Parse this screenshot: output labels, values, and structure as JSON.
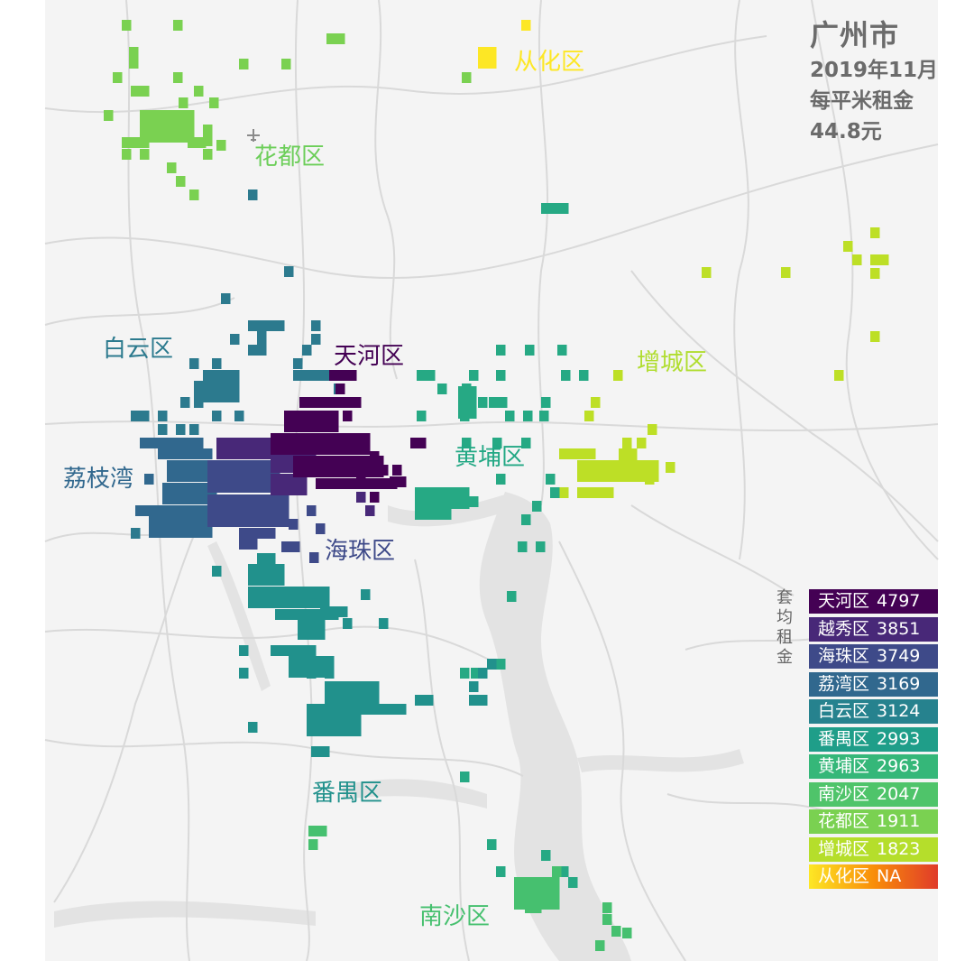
{
  "header": {
    "city": "广州市",
    "date": "2019年11月",
    "metric_label": "每平米租金",
    "metric_value": "44.8元"
  },
  "colors": {
    "background": "#ffffff",
    "land": "#f4f4f4",
    "road": "#dcdcdc",
    "water": "#e4e4e4",
    "title_text": "#6b6b6b"
  },
  "districts": [
    {
      "id": "tianhe",
      "name": "天河区",
      "color": "#440154",
      "label_color": "#440154"
    },
    {
      "id": "yuexiu",
      "name": "越秀区",
      "color": "#482878",
      "label_color": "#482878"
    },
    {
      "id": "haizhu",
      "name": "海珠区",
      "color": "#3e4a89",
      "label_color": "#3e4a89"
    },
    {
      "id": "liwan",
      "name": "荔枝湾",
      "color": "#31688e",
      "label_color": "#31688e"
    },
    {
      "id": "baiyun",
      "name": "白云区",
      "color": "#2c7a8e",
      "label_color": "#2c7a8e"
    },
    {
      "id": "panyu",
      "name": "番禺区",
      "color": "#21918c",
      "label_color": "#21918c"
    },
    {
      "id": "huangpu",
      "name": "黄埔区",
      "color": "#26a984",
      "label_color": "#22a884"
    },
    {
      "id": "nansha",
      "name": "南沙区",
      "color": "#46c06f",
      "label_color": "#46c06f"
    },
    {
      "id": "huadu",
      "name": "花都区",
      "color": "#7ad151",
      "label_color": "#6cce59"
    },
    {
      "id": "zengcheng",
      "name": "增城区",
      "color": "#bddf26",
      "label_color": "#b0dd2f"
    },
    {
      "id": "conghua",
      "name": "从化区",
      "color": "#fde725",
      "label_color": "#fde725"
    }
  ],
  "legend": {
    "title": "套均租金",
    "items": [
      {
        "district": "天河区",
        "value": "4797",
        "color": "#440154"
      },
      {
        "district": "越秀区",
        "value": "3851",
        "color": "#482878"
      },
      {
        "district": "海珠区",
        "value": "3749",
        "color": "#3e4a89"
      },
      {
        "district": "荔湾区",
        "value": "3169",
        "color": "#31688e"
      },
      {
        "district": "白云区",
        "value": "3124",
        "color": "#26828e"
      },
      {
        "district": "番禺区",
        "value": "2993",
        "color": "#1f9e89"
      },
      {
        "district": "黄埔区",
        "value": "2963",
        "color": "#35b779"
      },
      {
        "district": "南沙区",
        "value": "2047",
        "color": "#4fc46a"
      },
      {
        "district": "花都区",
        "value": "1911",
        "color": "#7ad151"
      },
      {
        "district": "增城区",
        "value": "1823",
        "color": "#b5de2b"
      },
      {
        "district": "从化区",
        "value": "NA",
        "gradient": [
          "#fde725",
          "#f98e09",
          "#e03b2a"
        ]
      }
    ]
  }
}
